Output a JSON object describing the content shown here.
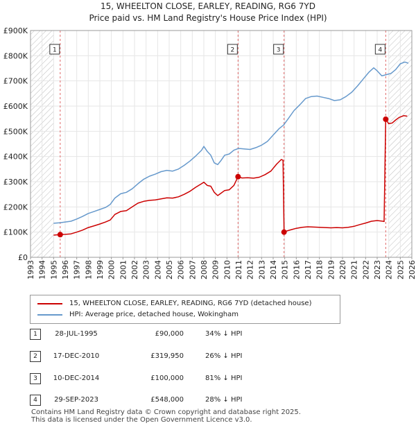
{
  "title": "15, WHEELTON CLOSE, EARLEY, READING, RG6 7YD",
  "subtitle": "Price paid vs. HM Land Registry's House Price Index (HPI)",
  "chart_data": {
    "type": "line",
    "title": "15, WHEELTON CLOSE, EARLEY, READING, RG6 7YD",
    "subtitle": "Price paid vs. HM Land Registry's House Price Index (HPI)",
    "xlim": [
      1993,
      2026
    ],
    "ylim": [
      0,
      900000
    ],
    "x_ticks": [
      1993,
      1994,
      1995,
      1996,
      1997,
      1998,
      1999,
      2000,
      2001,
      2002,
      2003,
      2004,
      2005,
      2006,
      2007,
      2008,
      2009,
      2010,
      2011,
      2012,
      2013,
      2014,
      2015,
      2016,
      2017,
      2018,
      2019,
      2020,
      2021,
      2022,
      2023,
      2024,
      2025,
      2026
    ],
    "y_ticks": [
      0,
      100000,
      200000,
      300000,
      400000,
      500000,
      600000,
      700000,
      800000,
      900000
    ],
    "y_tick_labels": [
      "£0",
      "£100K",
      "£200K",
      "£300K",
      "£400K",
      "£500K",
      "£600K",
      "£700K",
      "£800K",
      "£900K"
    ],
    "hatch_before": 1995,
    "hatch_after": 2024,
    "series": [
      {
        "name": "15, WHEELTON CLOSE, EARLEY, READING, RG6 7YD (detached house)",
        "color": "#cc0000",
        "points": [
          [
            1995.0,
            88000
          ],
          [
            1995.57,
            90000
          ],
          [
            1996.0,
            91000
          ],
          [
            1996.5,
            93000
          ],
          [
            1997.0,
            100000
          ],
          [
            1997.5,
            108000
          ],
          [
            1998.0,
            118000
          ],
          [
            1998.5,
            125000
          ],
          [
            1999.0,
            132000
          ],
          [
            1999.5,
            140000
          ],
          [
            1999.9,
            148000
          ],
          [
            2000.3,
            170000
          ],
          [
            2000.8,
            182000
          ],
          [
            2001.3,
            185000
          ],
          [
            2001.8,
            200000
          ],
          [
            2002.3,
            215000
          ],
          [
            2002.8,
            222000
          ],
          [
            2003.3,
            226000
          ],
          [
            2003.8,
            228000
          ],
          [
            2004.3,
            232000
          ],
          [
            2004.8,
            236000
          ],
          [
            2005.3,
            235000
          ],
          [
            2005.8,
            240000
          ],
          [
            2006.3,
            250000
          ],
          [
            2006.8,
            262000
          ],
          [
            2007.3,
            278000
          ],
          [
            2007.8,
            292000
          ],
          [
            2008.0,
            298000
          ],
          [
            2008.3,
            285000
          ],
          [
            2008.6,
            282000
          ],
          [
            2008.9,
            258000
          ],
          [
            2009.2,
            245000
          ],
          [
            2009.5,
            255000
          ],
          [
            2009.8,
            265000
          ],
          [
            2010.2,
            268000
          ],
          [
            2010.6,
            285000
          ],
          [
            2010.96,
            319950
          ],
          [
            2011.3,
            315000
          ],
          [
            2011.8,
            316000
          ],
          [
            2012.3,
            314000
          ],
          [
            2012.8,
            318000
          ],
          [
            2013.3,
            328000
          ],
          [
            2013.8,
            342000
          ],
          [
            2014.3,
            370000
          ],
          [
            2014.7,
            388000
          ],
          [
            2014.85,
            385000
          ],
          [
            2014.94,
            100000
          ],
          [
            2015.2,
            105000
          ],
          [
            2015.6,
            110000
          ],
          [
            2016.0,
            115000
          ],
          [
            2016.5,
            119000
          ],
          [
            2017.0,
            121000
          ],
          [
            2017.5,
            120000
          ],
          [
            2018.0,
            119000
          ],
          [
            2018.5,
            118000
          ],
          [
            2019.0,
            117000
          ],
          [
            2019.5,
            118000
          ],
          [
            2020.0,
            117000
          ],
          [
            2020.5,
            119000
          ],
          [
            2021.0,
            123000
          ],
          [
            2021.5,
            130000
          ],
          [
            2022.0,
            136000
          ],
          [
            2022.5,
            143000
          ],
          [
            2023.0,
            146000
          ],
          [
            2023.5,
            143000
          ],
          [
            2023.6,
            142000
          ],
          [
            2023.74,
            548000
          ],
          [
            2024.0,
            530000
          ],
          [
            2024.3,
            533000
          ],
          [
            2024.6,
            545000
          ],
          [
            2024.9,
            555000
          ],
          [
            2025.3,
            562000
          ],
          [
            2025.6,
            560000
          ]
        ]
      },
      {
        "name": "HPI: Average price, detached house, Wokingham",
        "color": "#6699cc",
        "points": [
          [
            1995.0,
            135000
          ],
          [
            1995.5,
            137000
          ],
          [
            1996.0,
            140000
          ],
          [
            1996.5,
            143000
          ],
          [
            1997.0,
            152000
          ],
          [
            1997.5,
            162000
          ],
          [
            1998.0,
            174000
          ],
          [
            1998.5,
            182000
          ],
          [
            1999.0,
            190000
          ],
          [
            1999.5,
            198000
          ],
          [
            1999.9,
            210000
          ],
          [
            2000.3,
            235000
          ],
          [
            2000.8,
            252000
          ],
          [
            2001.3,
            258000
          ],
          [
            2001.8,
            272000
          ],
          [
            2002.3,
            292000
          ],
          [
            2002.8,
            310000
          ],
          [
            2003.3,
            322000
          ],
          [
            2003.8,
            330000
          ],
          [
            2004.3,
            340000
          ],
          [
            2004.8,
            345000
          ],
          [
            2005.3,
            342000
          ],
          [
            2005.8,
            350000
          ],
          [
            2006.3,
            365000
          ],
          [
            2006.8,
            382000
          ],
          [
            2007.3,
            402000
          ],
          [
            2007.8,
            425000
          ],
          [
            2008.0,
            440000
          ],
          [
            2008.3,
            420000
          ],
          [
            2008.6,
            405000
          ],
          [
            2008.9,
            375000
          ],
          [
            2009.2,
            368000
          ],
          [
            2009.5,
            385000
          ],
          [
            2009.8,
            405000
          ],
          [
            2010.2,
            410000
          ],
          [
            2010.6,
            425000
          ],
          [
            2011.0,
            432000
          ],
          [
            2011.5,
            430000
          ],
          [
            2012.0,
            428000
          ],
          [
            2012.5,
            435000
          ],
          [
            2013.0,
            445000
          ],
          [
            2013.5,
            460000
          ],
          [
            2014.0,
            485000
          ],
          [
            2014.5,
            510000
          ],
          [
            2014.9,
            525000
          ],
          [
            2015.3,
            550000
          ],
          [
            2015.8,
            582000
          ],
          [
            2016.3,
            605000
          ],
          [
            2016.8,
            630000
          ],
          [
            2017.3,
            638000
          ],
          [
            2017.8,
            640000
          ],
          [
            2018.3,
            635000
          ],
          [
            2018.8,
            630000
          ],
          [
            2019.3,
            622000
          ],
          [
            2019.8,
            625000
          ],
          [
            2020.3,
            638000
          ],
          [
            2020.8,
            655000
          ],
          [
            2021.3,
            680000
          ],
          [
            2021.8,
            708000
          ],
          [
            2022.3,
            735000
          ],
          [
            2022.7,
            752000
          ],
          [
            2023.0,
            740000
          ],
          [
            2023.4,
            720000
          ],
          [
            2023.8,
            725000
          ],
          [
            2024.2,
            730000
          ],
          [
            2024.6,
            745000
          ],
          [
            2025.0,
            768000
          ],
          [
            2025.4,
            775000
          ],
          [
            2025.7,
            770000
          ]
        ]
      }
    ],
    "sale_markers": [
      {
        "label": "1",
        "x": 1995.57,
        "y": 90000
      },
      {
        "label": "2",
        "x": 2010.96,
        "y": 319950
      },
      {
        "label": "3",
        "x": 2014.94,
        "y": 100000
      },
      {
        "label": "4",
        "x": 2023.74,
        "y": 548000
      }
    ]
  },
  "legend": {
    "red_label": "15, WHEELTON CLOSE, EARLEY, READING, RG6 7YD (detached house)",
    "blue_label": "HPI: Average price, detached house, Wokingham"
  },
  "sales": [
    {
      "num": "1",
      "date": "28-JUL-1995",
      "price": "£90,000",
      "hpi": "34% ↓ HPI"
    },
    {
      "num": "2",
      "date": "17-DEC-2010",
      "price": "£319,950",
      "hpi": "26% ↓ HPI"
    },
    {
      "num": "3",
      "date": "10-DEC-2014",
      "price": "£100,000",
      "hpi": "81% ↓ HPI"
    },
    {
      "num": "4",
      "date": "29-SEP-2023",
      "price": "£548,000",
      "hpi": "28% ↓ HPI"
    }
  ],
  "footer": {
    "line1": "Contains HM Land Registry data © Crown copyright and database right 2025.",
    "line2": "This data is licensed under the Open Government Licence v3.0."
  }
}
